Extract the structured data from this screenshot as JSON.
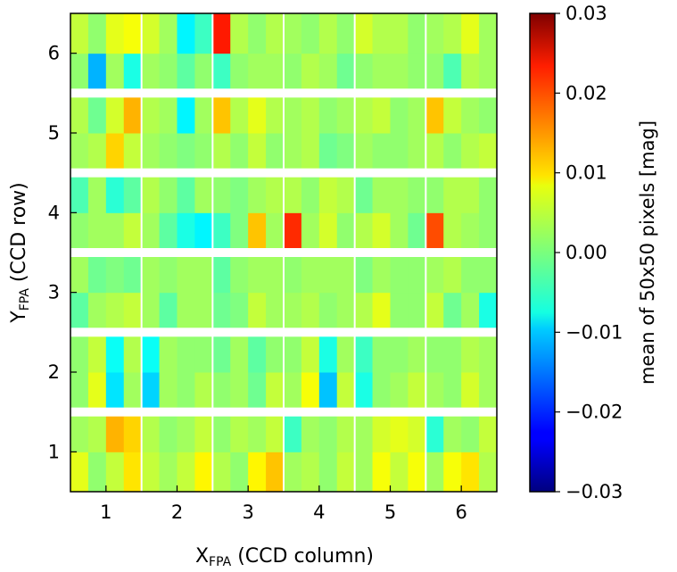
{
  "chart_data": {
    "type": "heatmap",
    "title": "",
    "xlabel": {
      "main": "X",
      "sub": "FPA",
      "rest": " (CCD column)"
    },
    "ylabel": {
      "main": "Y",
      "sub": "FPA",
      "rest": " (CCD row)"
    },
    "xlim": [
      0.5,
      6.5
    ],
    "ylim": [
      0.5,
      6.5
    ],
    "x_ticks": [
      "1",
      "2",
      "3",
      "4",
      "5",
      "6"
    ],
    "y_ticks": [
      "1",
      "2",
      "3",
      "4",
      "5",
      "6"
    ],
    "colorbar": {
      "label": "mean of 50x50 pixels [mag]",
      "min": -0.03,
      "max": 0.03,
      "colormap": "jet",
      "ticks": [
        "0.03",
        "0.02",
        "0.01",
        "0.00",
        "−0.01",
        "−0.02",
        "−0.03"
      ]
    },
    "grid_note": "6 CCD rows x 6 CCD columns, each CCD split into 2x2 amplifier quadrants; row-major from bottom row (y=1, lower half first), columns x=1..6 left to right, two quadrants per CCD",
    "cell_values": [
      [
        0.006,
        0.001,
        0.004,
        0.009,
        0.004,
        0.002,
        0.004,
        0.008,
        0.003,
        0.001,
        0.008,
        0.011,
        0.002,
        0.003,
        0.001,
        0.004,
        0.002,
        0.007,
        0.004,
        0.007,
        0.002,
        0.007,
        0.009,
        0.003
      ],
      [
        0.002,
        0.003,
        0.012,
        0.01,
        0.003,
        0.001,
        0.002,
        0.004,
        0.001,
        0.003,
        0.002,
        0.004,
        -0.004,
        0.002,
        0.001,
        0.003,
        0.002,
        0.005,
        0.006,
        0.005,
        -0.005,
        0.002,
        0.001,
        0.004
      ],
      [
        0.001,
        0.006,
        -0.009,
        0.002,
        -0.01,
        0.002,
        0.001,
        0.003,
        0.001,
        0.002,
        -0.001,
        0.004,
        0.002,
        0.007,
        -0.011,
        0.004,
        -0.006,
        0.001,
        0.002,
        0.004,
        0.002,
        0.001,
        0.005,
        0.002
      ],
      [
        0.001,
        0.004,
        -0.007,
        0.003,
        -0.007,
        0.002,
        0.001,
        0.001,
        -0.001,
        0.002,
        -0.002,
        0.001,
        0.001,
        0.004,
        -0.006,
        0.002,
        -0.004,
        0.001,
        0.001,
        0.002,
        0.001,
        0.001,
        0.003,
        0.002
      ],
      [
        -0.002,
        0.002,
        0.003,
        0.004,
        0.002,
        -0.002,
        0.002,
        0.002,
        -0.001,
        0.0,
        0.004,
        0.002,
        0.002,
        0.003,
        0.001,
        0.002,
        0.003,
        0.006,
        0.001,
        0.001,
        0.004,
        -0.001,
        0.002,
        -0.006
      ],
      [
        0.002,
        -0.001,
        0.0,
        -0.001,
        0.002,
        0.001,
        0.002,
        0.002,
        -0.002,
        0.001,
        0.002,
        0.002,
        0.001,
        0.002,
        0.002,
        0.002,
        0.0,
        0.002,
        0.001,
        0.001,
        0.002,
        0.003,
        0.001,
        0.001
      ],
      [
        0.001,
        0.002,
        0.002,
        0.004,
        0.002,
        -0.002,
        -0.006,
        -0.008,
        -0.004,
        0.0,
        0.011,
        0.002,
        0.02,
        0.002,
        0.005,
        0.001,
        0.003,
        0.005,
        0.002,
        -0.001,
        0.018,
        0.003,
        0.002,
        0.001
      ],
      [
        -0.003,
        0.002,
        -0.005,
        -0.002,
        0.003,
        0.001,
        -0.002,
        0.002,
        0.001,
        0.0,
        0.002,
        0.003,
        0.003,
        0.001,
        0.004,
        0.003,
        -0.001,
        0.002,
        0.002,
        0.001,
        0.001,
        0.003,
        0.003,
        0.001
      ],
      [
        0.002,
        0.003,
        0.01,
        0.004,
        0.002,
        0.001,
        0.0,
        0.001,
        0.003,
        0.001,
        0.004,
        0.001,
        0.002,
        0.003,
        -0.001,
        0.0,
        0.002,
        0.001,
        0.001,
        0.002,
        0.003,
        0.001,
        0.003,
        0.004
      ],
      [
        0.003,
        -0.001,
        0.005,
        0.012,
        0.003,
        0.002,
        -0.008,
        0.002,
        0.011,
        0.003,
        0.006,
        0.003,
        0.002,
        0.003,
        0.001,
        0.002,
        0.003,
        0.004,
        0.001,
        0.002,
        0.011,
        0.004,
        0.002,
        0.001
      ],
      [
        0.001,
        -0.012,
        0.002,
        -0.006,
        0.002,
        0.001,
        -0.002,
        0.001,
        -0.004,
        0.001,
        0.002,
        0.002,
        0.001,
        0.003,
        0.002,
        -0.001,
        0.001,
        0.002,
        0.002,
        0.001,
        0.001,
        -0.003,
        0.003,
        0.002
      ],
      [
        0.004,
        0.001,
        0.006,
        0.007,
        0.005,
        0.002,
        -0.008,
        -0.004,
        0.021,
        0.003,
        0.001,
        0.003,
        0.002,
        0.001,
        0.003,
        0.001,
        0.005,
        0.003,
        0.003,
        0.001,
        0.002,
        0.003,
        0.006,
        0.002
      ]
    ]
  }
}
